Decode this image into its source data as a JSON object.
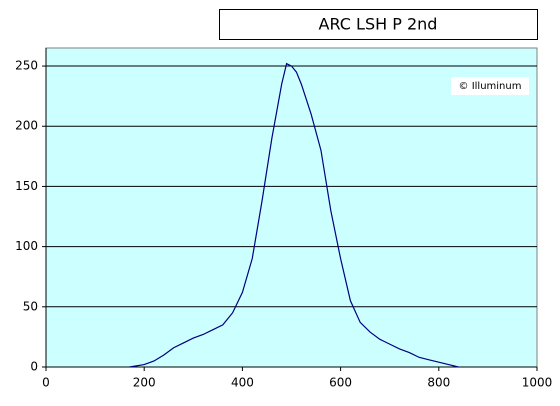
{
  "chart_data": {
    "type": "line",
    "title": "ARC LSH P 2nd",
    "annotation": "© Illuminum",
    "x": [
      170,
      200,
      220,
      240,
      260,
      280,
      300,
      320,
      340,
      360,
      380,
      400,
      420,
      440,
      460,
      480,
      490,
      500,
      510,
      520,
      540,
      560,
      580,
      600,
      620,
      640,
      660,
      680,
      700,
      720,
      740,
      760,
      780,
      800,
      820,
      840
    ],
    "series": [
      {
        "color": "#000080",
        "values": [
          0,
          2,
          5,
          10,
          16,
          20,
          24,
          27,
          31,
          35,
          45,
          62,
          90,
          138,
          190,
          235,
          252,
          250,
          245,
          235,
          210,
          180,
          130,
          90,
          55,
          37,
          29,
          23,
          19,
          15,
          12,
          8,
          6,
          4,
          2,
          0
        ]
      }
    ],
    "xlim": [
      0,
      1000
    ],
    "xticks": [
      0,
      200,
      400,
      600,
      800,
      1000
    ],
    "ylim": [
      0,
      265
    ],
    "yticks": [
      0,
      50,
      100,
      150,
      200,
      250
    ],
    "grid": true,
    "background": "#ccffff"
  }
}
